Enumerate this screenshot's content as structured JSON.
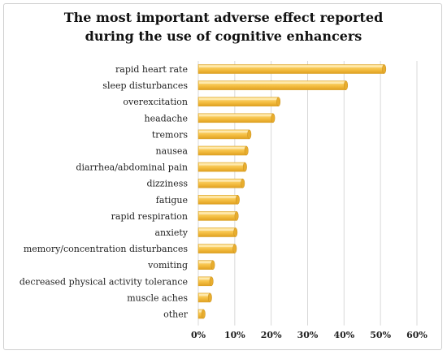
{
  "chart_data": {
    "type": "bar",
    "orientation": "horizontal",
    "title_line1": "The most important adverse effect reported",
    "title_line2": "during the use of cognitive enhancers",
    "categories": [
      "rapid heart rate",
      "sleep disturbances",
      "overexcitation",
      "headache",
      "tremors",
      "nausea",
      "diarrhea/abdominal pain",
      "dizziness",
      "fatigue",
      "rapid respiration",
      "anxiety",
      "memory/concentration disturbances",
      "vomiting",
      "decreased physical activity tolerance",
      "muscle aches",
      "other"
    ],
    "values": [
      51,
      40.5,
      22,
      20.5,
      14,
      13.2,
      12.8,
      12.2,
      10.8,
      10.5,
      10.2,
      10.0,
      4.0,
      3.6,
      3.2,
      1.4
    ],
    "xlim": [
      0,
      60
    ],
    "xticks": [
      "0%",
      "10%",
      "20%",
      "30%",
      "40%",
      "50%",
      "60%"
    ],
    "grid": true,
    "bar_color": "#f5c044"
  }
}
